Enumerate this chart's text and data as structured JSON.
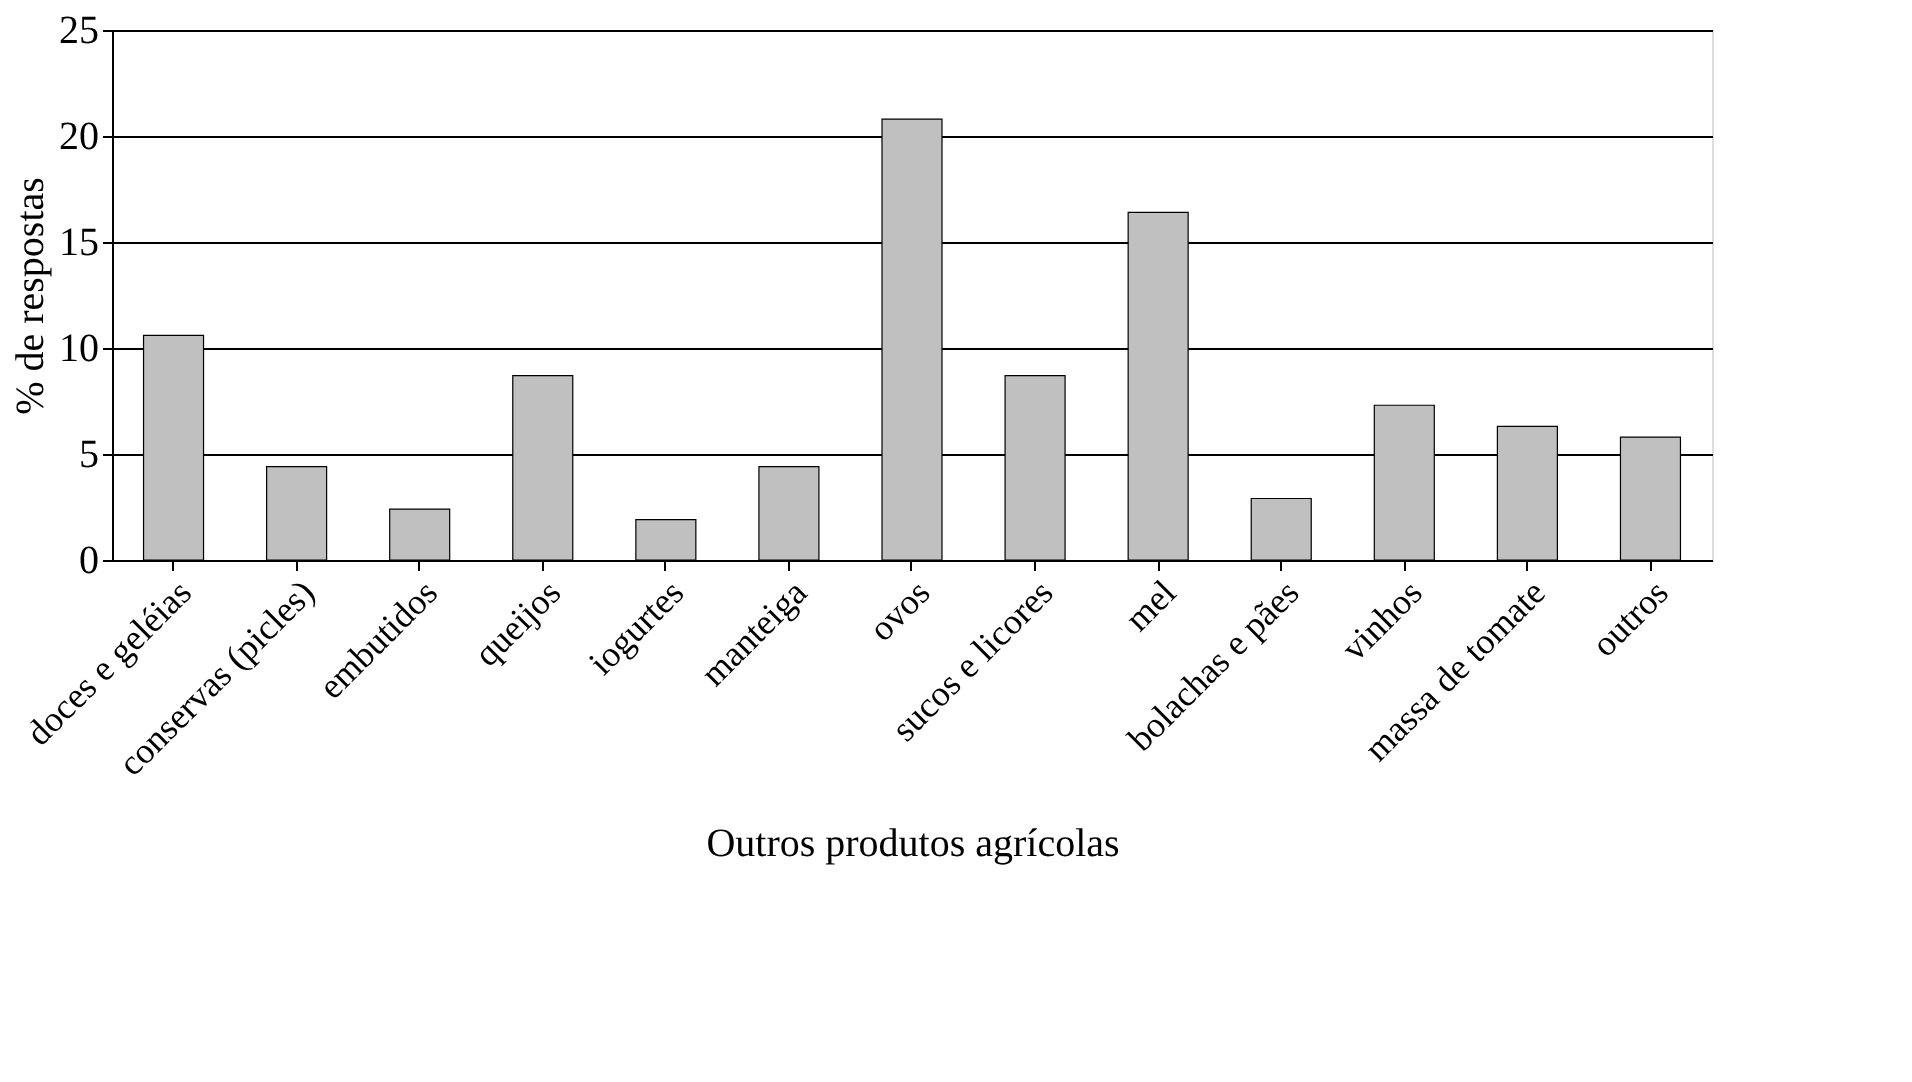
{
  "chart_data": {
    "type": "bar",
    "xlabel": "Outros produtos agrícolas",
    "ylabel": "% de respostas",
    "categories": [
      "doces e geléias",
      "conservas (picles)",
      "embutidos",
      "queijos",
      "iogurtes",
      "manteiga",
      "ovos",
      "sucos e licores",
      "mel",
      "bolachas e pães",
      "vinhos",
      "massa de tomate",
      "outros"
    ],
    "values": [
      10.6,
      4.4,
      2.4,
      8.7,
      1.9,
      4.4,
      20.8,
      8.7,
      16.4,
      2.9,
      7.3,
      6.3,
      5.8
    ],
    "color": "#c0c0c0",
    "ylim": [
      0,
      25
    ],
    "yticks": [
      0,
      5,
      10,
      15,
      20,
      25
    ],
    "grid": "y"
  }
}
